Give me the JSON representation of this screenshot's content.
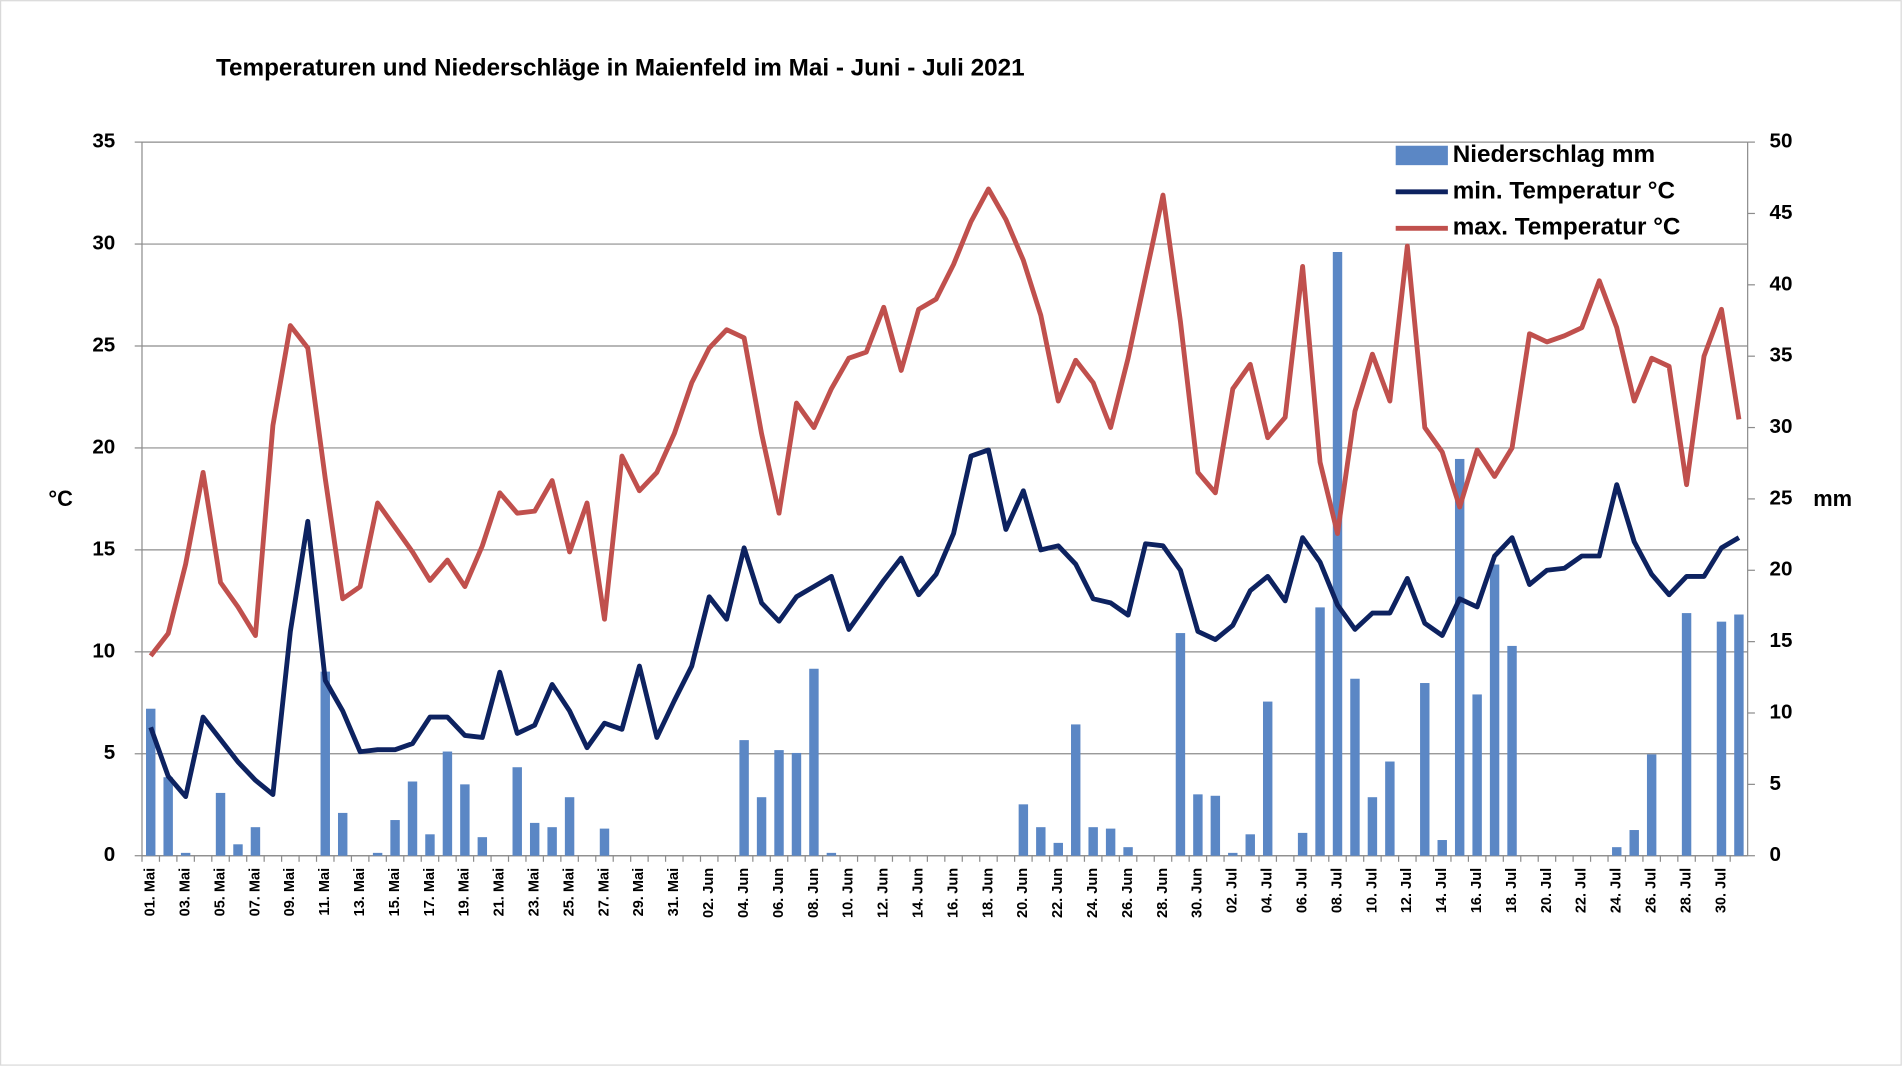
{
  "chart_data": {
    "type": "combo",
    "title": "Temperaturen und Niederschläge in Maienfeld im Mai - Juni - Juli 2021",
    "y_label": "°C",
    "y2_label": "mm",
    "categories": [
      "01. Mai",
      null,
      "03. Mai",
      null,
      "05. Mai",
      null,
      "07. Mai",
      null,
      "09. Mai",
      null,
      "11. Mai",
      null,
      "13. Mai",
      null,
      "15. Mai",
      null,
      "17. Mai",
      null,
      "19. Mai",
      null,
      "21. Mai",
      null,
      "23. Mai",
      null,
      "25. Mai",
      null,
      "27. Mai",
      null,
      "29. Mai",
      null,
      "31. Mai",
      null,
      "02. Jun",
      null,
      "04. Jun",
      null,
      "06. Jun",
      null,
      "08. Jun",
      null,
      "10. Jun",
      null,
      "12. Jun",
      null,
      "14. Jun",
      null,
      "16. Jun",
      null,
      "18. Jun",
      null,
      "20. Jun",
      null,
      "22. Jun",
      null,
      "24. Jun",
      null,
      "26. Jun",
      null,
      "28. Jun",
      null,
      "30. Jun",
      null,
      "02. Jul",
      null,
      "04. Jul",
      null,
      "06. Jul",
      null,
      "08. Jul",
      null,
      "10. Jul",
      null,
      "12. Jul",
      null,
      "14. Jul",
      null,
      "16. Jul",
      null,
      "18. Jul",
      null,
      "20. Jul",
      null,
      "22. Jul",
      null,
      "24. Jul",
      null,
      "26. Jul",
      null,
      "28. Jul",
      null,
      "30. Jul",
      null
    ],
    "series": [
      {
        "name": "Niederschlag mm",
        "type": "bar",
        "axis": "y2",
        "color": "#5b87c5",
        "values": [
          10.3,
          5.5,
          0.2,
          0,
          4.4,
          0.8,
          2.0,
          0,
          0,
          0,
          12.9,
          3.0,
          0,
          0.2,
          2.5,
          5.2,
          1.5,
          7.3,
          5.0,
          1.3,
          0,
          6.2,
          2.3,
          2.0,
          4.1,
          0,
          1.9,
          0,
          0,
          0,
          0,
          0,
          0,
          0,
          8.1,
          4.1,
          7.4,
          7.2,
          13.1,
          0.2,
          0,
          0,
          0,
          0,
          0,
          0,
          0,
          0,
          0,
          0,
          3.6,
          2.0,
          0.9,
          9.2,
          2.0,
          1.9,
          0.6,
          0,
          0,
          15.6,
          4.3,
          4.2,
          0.2,
          1.5,
          10.8,
          0,
          1.6,
          17.4,
          42.3,
          12.4,
          4.1,
          6.6,
          0,
          12.1,
          1.1,
          27.8,
          11.3,
          20.4,
          14.7,
          0,
          0,
          0,
          0,
          0,
          0.6,
          1.8,
          7.1,
          0,
          17.0,
          0,
          16.4,
          16.9
        ]
      },
      {
        "name": "min. Temperatur °C",
        "type": "line",
        "color": "#0d2260",
        "values": [
          6.3,
          3.9,
          2.9,
          6.8,
          5.7,
          4.6,
          3.7,
          3.0,
          11.0,
          16.4,
          8.6,
          7.1,
          5.1,
          5.2,
          5.2,
          5.5,
          6.8,
          6.8,
          5.9,
          5.8,
          9.0,
          6.0,
          6.4,
          8.4,
          7.1,
          5.3,
          6.5,
          6.2,
          9.3,
          5.8,
          7.6,
          9.3,
          12.7,
          11.6,
          15.1,
          12.4,
          11.5,
          12.7,
          13.2,
          13.7,
          11.1,
          12.3,
          13.5,
          14.6,
          12.8,
          13.8,
          15.8,
          19.6,
          19.9,
          16.0,
          17.9,
          15.0,
          15.2,
          14.3,
          12.6,
          12.4,
          11.8,
          15.3,
          15.2,
          14.0,
          11.0,
          10.6,
          11.3,
          13.0,
          13.7,
          12.5,
          15.6,
          14.4,
          12.3,
          11.1,
          11.9,
          11.9,
          13.6,
          11.4,
          10.8,
          12.6,
          12.2,
          14.7,
          15.6,
          13.3,
          14.0,
          14.1,
          14.7,
          14.7,
          18.2,
          15.4,
          13.8,
          12.8,
          13.7,
          13.7,
          15.1,
          15.6
        ]
      },
      {
        "name": "max. Temperatur °C",
        "type": "line",
        "color": "#c0504d",
        "values": [
          9.8,
          10.9,
          14.3,
          18.8,
          13.4,
          12.2,
          10.8,
          21.1,
          26.0,
          24.9,
          18.5,
          12.6,
          13.2,
          17.3,
          16.1,
          14.9,
          13.5,
          14.5,
          13.2,
          15.2,
          17.8,
          16.8,
          16.9,
          18.4,
          14.9,
          17.3,
          11.6,
          19.6,
          17.9,
          18.8,
          20.7,
          23.2,
          24.9,
          25.8,
          25.4,
          20.7,
          16.8,
          22.2,
          21.0,
          22.9,
          24.4,
          24.7,
          26.9,
          23.8,
          26.8,
          27.3,
          29.0,
          31.1,
          32.7,
          31.2,
          29.2,
          26.5,
          22.3,
          24.3,
          23.2,
          21.0,
          24.4,
          28.4,
          32.4,
          26.2,
          18.8,
          17.8,
          22.9,
          24.1,
          20.5,
          21.5,
          28.9,
          19.3,
          15.8,
          21.8,
          24.6,
          22.3,
          29.9,
          21.0,
          19.8,
          17.1,
          19.9,
          18.6,
          20.0,
          25.6,
          25.2,
          25.5,
          25.9,
          28.2,
          25.9,
          22.3,
          24.4,
          24.0,
          18.2,
          24.5,
          26.8,
          21.4
        ]
      }
    ],
    "ylim": [
      0,
      35
    ],
    "yticks": [
      0,
      5,
      10,
      15,
      20,
      25,
      30,
      35
    ],
    "y2lim": [
      0,
      50
    ],
    "y2ticks": [
      0,
      5,
      10,
      15,
      20,
      25,
      30,
      35,
      40,
      45,
      50
    ],
    "grid": true,
    "legend": "top-right"
  }
}
